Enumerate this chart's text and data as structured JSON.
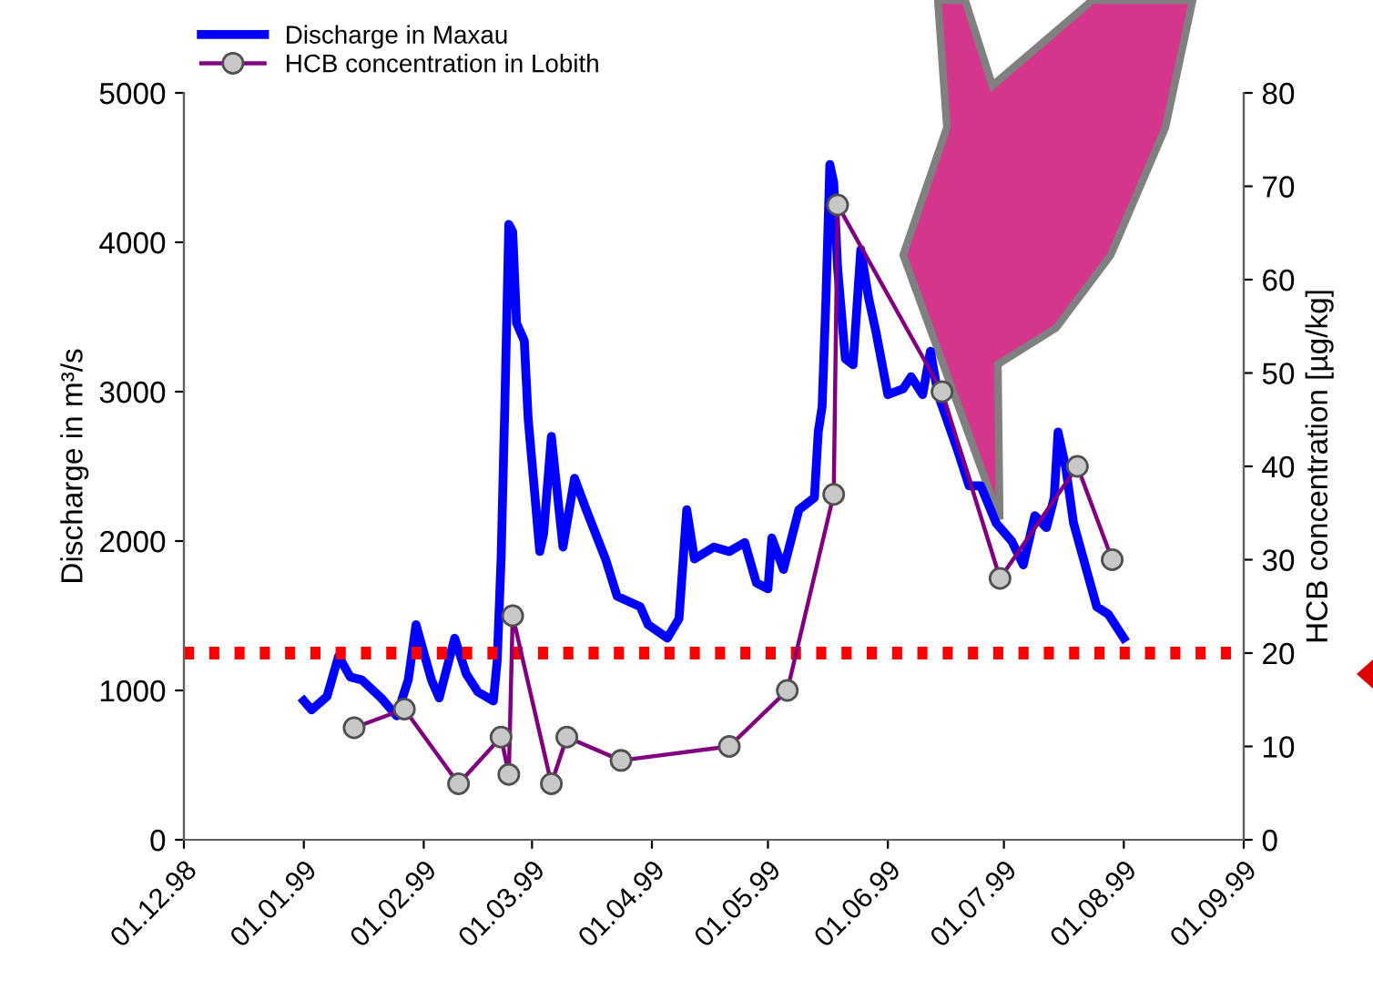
{
  "chart_data": {
    "type": "line",
    "legend": "top left",
    "grid": false,
    "ylabel": "Discharge in m³/s",
    "y2label": "HCB concentration [µg/kg]",
    "xlim": [
      "1998-12-01",
      "1999-09-01"
    ],
    "xticks": [
      {
        "value": "1998-12-01",
        "label": "01.12.98"
      },
      {
        "value": "1999-01-01",
        "label": "01.01.99"
      },
      {
        "value": "1999-02-01",
        "label": "01.02.99"
      },
      {
        "value": "1999-03-01",
        "label": "01.03.99"
      },
      {
        "value": "1999-04-01",
        "label": "01.04.99"
      },
      {
        "value": "1999-05-01",
        "label": "01.05.99"
      },
      {
        "value": "1999-06-01",
        "label": "01.06.99"
      },
      {
        "value": "1999-07-01",
        "label": "01.07.99"
      },
      {
        "value": "1999-08-01",
        "label": "01.08.99"
      },
      {
        "value": "1999-09-01",
        "label": "01.09.99"
      }
    ],
    "ylim": [
      0,
      5000
    ],
    "yticks": [
      0,
      1000,
      2000,
      3000,
      4000,
      5000
    ],
    "y2lim": [
      0,
      80
    ],
    "y2ticks": [
      0,
      10,
      20,
      30,
      40,
      50,
      60,
      70,
      80
    ],
    "ref_lines": [
      {
        "axis": "y2",
        "value": 20,
        "color": "#ff0000",
        "line_style": "dotted"
      }
    ],
    "series": [
      {
        "name": "Discharge in Maxau",
        "color": "#0000ff",
        "marker": "none",
        "line_style": "solid",
        "x": [
          "1999-01-01",
          "1999-01-03",
          "1999-01-07",
          "1999-01-10",
          "1999-01-13",
          "1999-01-16",
          "1999-01-21",
          "1999-01-25",
          "1999-01-28",
          "1999-01-30",
          "1999-02-03",
          "1999-02-05",
          "1999-02-09",
          "1999-02-12",
          "1999-02-15",
          "1999-02-19",
          "1999-02-20",
          "1999-02-21",
          "1999-02-22",
          "1999-02-23",
          "1999-02-24",
          "1999-02-25",
          "1999-02-27",
          "1999-02-28",
          "1999-03-03",
          "1999-03-04",
          "1999-03-06",
          "1999-03-09",
          "1999-03-12",
          "1999-03-15",
          "1999-03-20",
          "1999-03-23",
          "1999-03-29",
          "1999-03-31",
          "1999-04-05",
          "1999-04-08",
          "1999-04-10",
          "1999-04-12",
          "1999-04-17",
          "1999-04-21",
          "1999-04-25",
          "1999-04-28",
          "1999-05-01",
          "1999-05-02",
          "1999-05-05",
          "1999-05-09",
          "1999-05-13",
          "1999-05-14",
          "1999-05-15",
          "1999-05-16",
          "1999-05-17",
          "1999-05-18",
          "1999-05-19",
          "1999-05-21",
          "1999-05-23",
          "1999-05-25",
          "1999-05-27",
          "1999-05-29",
          "1999-06-01",
          "1999-06-05",
          "1999-06-07",
          "1999-06-10",
          "1999-06-12",
          "1999-06-14",
          "1999-06-19",
          "1999-06-22",
          "1999-06-25",
          "1999-06-29",
          "1999-07-03",
          "1999-07-06",
          "1999-07-09",
          "1999-07-12",
          "1999-07-14",
          "1999-07-15",
          "1999-07-17",
          "1999-07-19",
          "1999-07-22",
          "1999-07-25",
          "1999-07-28",
          "1999-08-01"
        ],
        "values": [
          930,
          870,
          960,
          1230,
          1090,
          1070,
          950,
          830,
          1070,
          1440,
          1070,
          950,
          1350,
          1110,
          990,
          930,
          1200,
          1880,
          2940,
          4120,
          4070,
          3460,
          3340,
          2820,
          1930,
          2050,
          2700,
          1960,
          2420,
          2210,
          1880,
          1630,
          1560,
          1440,
          1350,
          1480,
          2210,
          1880,
          1960,
          1930,
          1990,
          1720,
          1680,
          2020,
          1810,
          2210,
          2290,
          2730,
          2900,
          3630,
          4520,
          4400,
          3830,
          3220,
          3180,
          3950,
          3630,
          3390,
          2980,
          3020,
          3100,
          2980,
          3270,
          2980,
          2610,
          2370,
          2370,
          2120,
          2000,
          1840,
          2170,
          2090,
          2290,
          2730,
          2490,
          2120,
          1840,
          1560,
          1510,
          1350
        ]
      },
      {
        "name": "HCB concentration in Lobith",
        "color": "#800080",
        "marker": "circle",
        "line_style": "solid",
        "axis": "y2",
        "x": [
          "1999-01-14",
          "1999-01-27",
          "1999-02-10",
          "1999-02-21",
          "1999-02-23",
          "1999-02-24",
          "1999-03-06",
          "1999-03-10",
          "1999-03-24",
          "1999-04-21",
          "1999-05-06",
          "1999-05-18",
          "1999-05-19",
          "1999-06-15",
          "1999-06-30",
          "1999-07-20",
          "1999-07-29"
        ],
        "values": [
          12,
          14,
          6,
          11,
          7,
          24,
          6,
          11,
          8.5,
          10,
          16,
          37,
          68,
          48,
          28,
          40,
          30
        ]
      }
    ]
  }
}
